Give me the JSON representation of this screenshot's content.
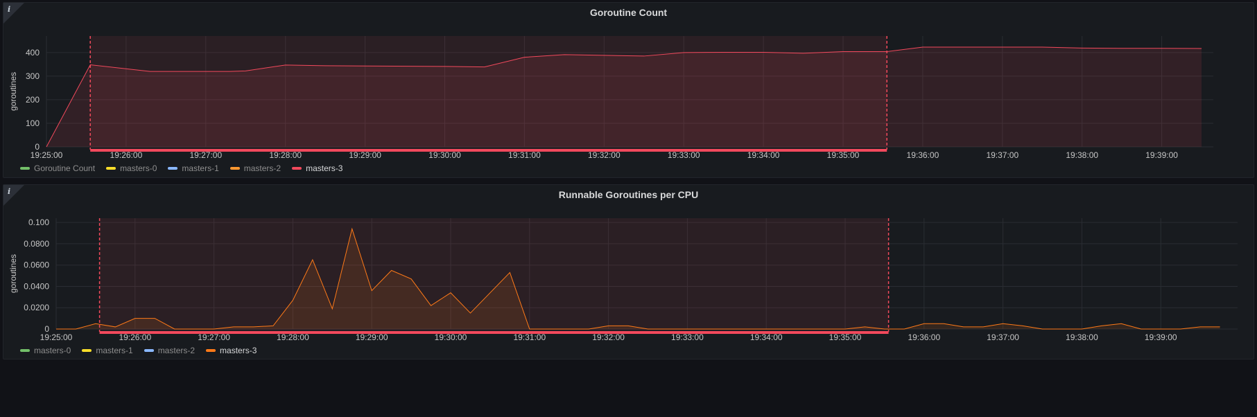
{
  "panels": [
    {
      "title": "Goroutine Count",
      "ylabel": "goroutines",
      "legend": [
        {
          "label": "Goroutine Count",
          "color": "#73bf69",
          "active": false
        },
        {
          "label": "masters-0",
          "color": "#fade2a",
          "active": false
        },
        {
          "label": "masters-1",
          "color": "#8ab8ff",
          "active": false
        },
        {
          "label": "masters-2",
          "color": "#ff9830",
          "active": false
        },
        {
          "label": "masters-3",
          "color": "#f2495c",
          "active": true
        }
      ]
    },
    {
      "title": "Runnable Goroutines per CPU",
      "ylabel": "goroutines",
      "legend": [
        {
          "label": "masters-0",
          "color": "#73bf69",
          "active": false
        },
        {
          "label": "masters-1",
          "color": "#fade2a",
          "active": false
        },
        {
          "label": "masters-2",
          "color": "#8ab8ff",
          "active": false
        },
        {
          "label": "masters-3",
          "color": "#ff7a18",
          "active": true
        }
      ]
    }
  ],
  "chart_data": [
    {
      "type": "area",
      "title": "Goroutine Count",
      "ylabel": "goroutines",
      "x_ticks": [
        "19:25:00",
        "19:26:00",
        "19:27:00",
        "19:28:00",
        "19:29:00",
        "19:30:00",
        "19:31:00",
        "19:32:00",
        "19:33:00",
        "19:34:00",
        "19:35:00",
        "19:36:00",
        "19:37:00",
        "19:38:00",
        "19:39:00"
      ],
      "y_ticks": [
        "0",
        "100",
        "200",
        "300",
        "400"
      ],
      "ylim": [
        0,
        470
      ],
      "xlim_minutes": [
        0,
        15.1
      ],
      "region_minutes": [
        0.55,
        10.55
      ],
      "series": [
        {
          "name": "masters-3",
          "color": "#f2495c",
          "x_minutes": [
            0,
            0.55,
            1.3,
            2.3,
            2.5,
            3.0,
            3.5,
            4.0,
            5.0,
            5.5,
            6.0,
            6.5,
            7.0,
            7.5,
            8.0,
            8.5,
            9.0,
            9.5,
            10.0,
            10.55,
            11.0,
            11.5,
            12.0,
            12.5,
            13.0,
            13.5,
            14.0,
            14.5
          ],
          "values": [
            0,
            348,
            320,
            320,
            322,
            347,
            344,
            343,
            341,
            339,
            380,
            391,
            388,
            385,
            400,
            401,
            401,
            397,
            404,
            404,
            423,
            423,
            423,
            423,
            419,
            418,
            418,
            417
          ]
        }
      ]
    },
    {
      "type": "area",
      "title": "Runnable Goroutines per CPU",
      "ylabel": "goroutines",
      "x_ticks": [
        "19:25:00",
        "19:26:00",
        "19:27:00",
        "19:28:00",
        "19:29:00",
        "19:30:00",
        "19:31:00",
        "19:32:00",
        "19:33:00",
        "19:34:00",
        "19:35:00",
        "19:36:00",
        "19:37:00",
        "19:38:00",
        "19:39:00"
      ],
      "y_ticks": [
        "0",
        "0.0200",
        "0.0400",
        "0.0600",
        "0.0800",
        "0.100"
      ],
      "ylim": [
        0,
        0.104
      ],
      "xlim_minutes": [
        0,
        14.9
      ],
      "region_minutes": [
        0.55,
        10.55
      ],
      "series": [
        {
          "name": "masters-3",
          "color": "#ff7a18",
          "x_minutes": [
            0,
            0.25,
            0.5,
            0.75,
            1.0,
            1.25,
            1.5,
            1.75,
            2.0,
            2.25,
            2.5,
            2.75,
            3.0,
            3.25,
            3.5,
            3.75,
            4.0,
            4.25,
            4.5,
            4.75,
            5.0,
            5.25,
            5.5,
            5.75,
            6.0,
            6.25,
            6.5,
            6.75,
            7.0,
            7.25,
            7.5,
            7.75,
            8.0,
            8.5,
            9.0,
            9.5,
            10.0,
            10.25,
            10.5,
            10.75,
            11.0,
            11.25,
            11.5,
            11.75,
            12.0,
            12.25,
            12.5,
            12.75,
            13.0,
            13.25,
            13.5,
            13.75,
            14.0,
            14.25,
            14.5,
            14.75
          ],
          "values": [
            0,
            0,
            0.005,
            0.002,
            0.01,
            0.01,
            0,
            0,
            0,
            0.002,
            0.002,
            0.003,
            0.027,
            0.065,
            0.019,
            0.094,
            0.036,
            0.055,
            0.047,
            0.022,
            0.034,
            0.015,
            0.034,
            0.053,
            0,
            0,
            0,
            0,
            0.003,
            0.003,
            0,
            0,
            0,
            0,
            0,
            0,
            0,
            0.002,
            0,
            0,
            0.005,
            0.005,
            0.002,
            0.002,
            0.005,
            0.003,
            0,
            0,
            0,
            0.003,
            0.005,
            0,
            0,
            0,
            0.002,
            0.002
          ]
        }
      ]
    }
  ]
}
